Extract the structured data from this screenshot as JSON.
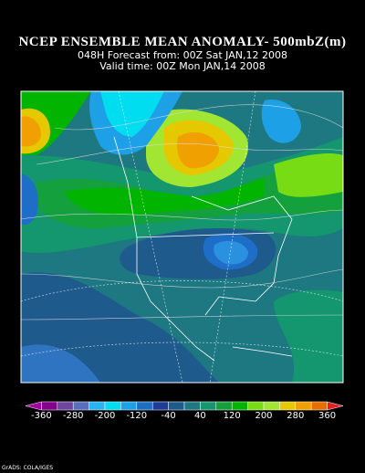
{
  "header": {
    "title": "NCEP ENSEMBLE MEAN ANOMALY- 500mbZ(m)",
    "forecast": "048H Forecast from: 00Z Sat JAN,12 2008",
    "valid": "Valid time: 00Z Mon JAN,14 2008"
  },
  "colorbar": {
    "labels": [
      -360,
      -280,
      -200,
      -120,
      -40,
      40,
      120,
      200,
      280,
      360
    ],
    "colors": [
      "#a000a0",
      "#82008c",
      "#6e46a0",
      "#5a6ebe",
      "#28b4f0",
      "#00dcf0",
      "#1ea0e6",
      "#1e6ec8",
      "#1e3c96",
      "#1e5a8c",
      "#1e7882",
      "#14966e",
      "#14a03c",
      "#00b400",
      "#78dc14",
      "#a0e632",
      "#e6c800",
      "#f0a000",
      "#e66e00",
      "#e61e1e"
    ]
  },
  "footer": "GrADS: COLA/IGES"
}
